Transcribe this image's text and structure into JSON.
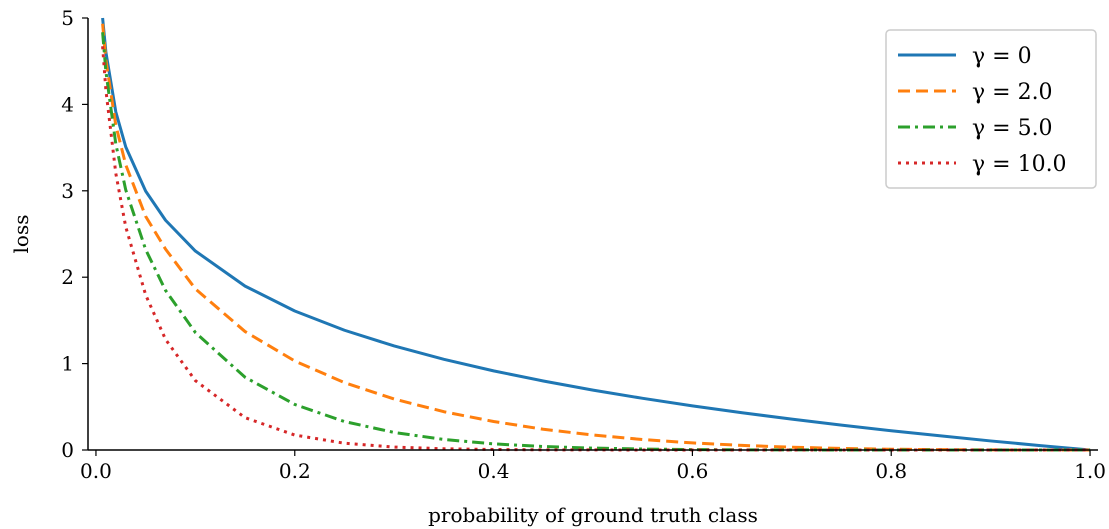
{
  "chart_data": {
    "type": "line",
    "xlabel": "probability of ground truth class",
    "ylabel": "loss",
    "xlim": [
      0.0,
      1.0
    ],
    "ylim": [
      0,
      5
    ],
    "xticks": [
      "0.0",
      "0.2",
      "0.4",
      "0.6",
      "0.8",
      "1.0"
    ],
    "yticks": [
      "0",
      "1",
      "2",
      "3",
      "4",
      "5"
    ],
    "grid": false,
    "legend_position": "top-right",
    "x": [
      0.0067,
      0.01,
      0.02,
      0.03,
      0.05,
      0.07,
      0.1,
      0.15,
      0.2,
      0.25,
      0.3,
      0.35,
      0.4,
      0.45,
      0.5,
      0.55,
      0.6,
      0.65,
      0.7,
      0.75,
      0.8,
      0.85,
      0.9,
      0.95,
      1.0
    ],
    "series": [
      {
        "name": "γ = 0",
        "color": "#1f77b4",
        "dash": "solid",
        "values": [
          5.0,
          4.605,
          3.912,
          3.507,
          2.996,
          2.659,
          2.303,
          1.897,
          1.609,
          1.386,
          1.204,
          1.05,
          0.916,
          0.799,
          0.693,
          0.598,
          0.511,
          0.431,
          0.357,
          0.288,
          0.223,
          0.163,
          0.105,
          0.051,
          0.0
        ]
      },
      {
        "name": "γ = 2.0",
        "color": "#ff7f0e",
        "dash": "dashed",
        "values": [
          4.933,
          4.513,
          3.757,
          3.3,
          2.704,
          2.325,
          1.865,
          1.371,
          1.03,
          0.78,
          0.59,
          0.443,
          0.33,
          0.24,
          0.173,
          0.121,
          0.082,
          0.053,
          0.032,
          0.018,
          0.009,
          0.004,
          0.001,
          0.0001,
          0.0
        ]
      },
      {
        "name": "γ = 5.0",
        "color": "#2ca02c",
        "dash": "dashdot",
        "values": [
          4.835,
          4.38,
          3.54,
          3.009,
          2.32,
          1.847,
          1.36,
          0.842,
          0.527,
          0.329,
          0.203,
          0.122,
          0.071,
          0.04,
          0.022,
          0.011,
          0.005,
          0.002,
          0.001,
          0.0003,
          0.0001,
          0.0,
          0.0,
          0.0,
          0.0
        ]
      },
      {
        "name": "γ = 10.0",
        "color": "#d62728",
        "dash": "dotted",
        "values": [
          4.673,
          4.165,
          3.2,
          2.58,
          1.795,
          1.28,
          0.803,
          0.374,
          0.173,
          0.078,
          0.034,
          0.014,
          0.006,
          0.002,
          0.001,
          0.0002,
          0.0001,
          0.0,
          0.0,
          0.0,
          0.0,
          0.0,
          0.0,
          0.0,
          0.0
        ]
      }
    ]
  }
}
